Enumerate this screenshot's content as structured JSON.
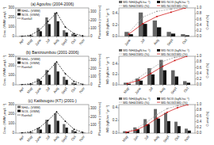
{
  "chart_data": [
    {
      "type": "bar",
      "title": "(a) Agoufou (2004-2006)",
      "y_label": "Conc. (VWM µeq.L⁻¹)",
      "y2_label": "Pluviométrie (mm/mois)",
      "categories": [
        "Apr",
        "May",
        "June",
        "Jul",
        "Aug",
        "Sept",
        "Oct",
        "Nov"
      ],
      "series": [
        {
          "name": "NH4+ (VWM)",
          "color": "#666666",
          "values": [
            5,
            10,
            90,
            200,
            250,
            65,
            28,
            4
          ]
        },
        {
          "name": "NO3- (VWM)",
          "color": "#111111",
          "values": [
            3,
            6,
            55,
            130,
            160,
            42,
            18,
            2
          ]
        },
        {
          "name": "Rainfall",
          "type": "line",
          "axis": "y2",
          "color": "#000000",
          "line_style": "dashed",
          "marker": "circle",
          "values": [
            2,
            15,
            75,
            185,
            290,
            115,
            35,
            8
          ]
        }
      ],
      "ylim": [
        0,
        300
      ],
      "yticks": [
        0,
        100,
        200,
        300
      ],
      "y2lim": [
        0,
        350
      ],
      "y2ticks": [
        0,
        100,
        200,
        300
      ],
      "grid": false,
      "legend": "upper left"
    },
    {
      "type": "bar",
      "y_label": "WD (kgN.ha⁻¹.yr⁻¹)",
      "y2_label": "Cumul (%)",
      "categories": [
        "June",
        "Jul",
        "Aug",
        "Sept",
        "Oct"
      ],
      "series": [
        {
          "name": "WD NH4(kgN.ha⁻¹)",
          "color": "#666666",
          "values": [
            0.08,
            0.42,
            0.28,
            0.08,
            0.04
          ]
        },
        {
          "name": "WD NO3 (kgN.ha⁻¹)",
          "color": "#111111",
          "values": [
            0.04,
            0.22,
            0.16,
            0.05,
            0.02
          ]
        },
        {
          "name": "WD NH4/ΣWD (%)",
          "type": "line",
          "axis": "y2",
          "color": "#999999",
          "line_style": "dashed",
          "marker": "circle",
          "values": [
            0.13,
            0.68,
            0.88,
            0.96,
            1.0
          ]
        },
        {
          "name": "WD NO3/ΣWD (%)",
          "type": "line",
          "axis": "y2",
          "color": "#cc0000",
          "line_style": "solid",
          "marker": "circle",
          "values": [
            0.08,
            0.45,
            0.7,
            0.85,
            1.0
          ]
        }
      ],
      "ylim": [
        0,
        0.5
      ],
      "yticks": [
        {
          "value": 0,
          "label": "0.0"
        },
        0.2,
        0.4
      ],
      "y2lim": [
        0,
        1.0
      ],
      "y2ticks": [
        {
          "value": 0,
          "label": "0.0"
        },
        0.2,
        0.4,
        0.6,
        0.8,
        {
          "value": 1,
          "label": "1.0"
        }
      ],
      "grid": false,
      "legend": "top"
    },
    {
      "type": "bar",
      "title": "(b) Banizoumbou (2001-2006)",
      "y_label": "Conc. (VWM µeq.L⁻¹)",
      "y2_label": "Pluviométrie (mm/mois)",
      "categories": [
        "Apr",
        "May",
        "June",
        "Jul",
        "Aug",
        "Sept",
        "Oct",
        "Nov"
      ],
      "series": [
        {
          "name": "NH4+ (VWM)",
          "color": "#666666",
          "values": [
            4,
            8,
            65,
            155,
            230,
            85,
            22,
            3
          ]
        },
        {
          "name": "NO3- (VWM)",
          "color": "#111111",
          "values": [
            2,
            5,
            42,
            105,
            140,
            52,
            14,
            2
          ]
        },
        {
          "name": "Rainfall",
          "type": "line",
          "axis": "y2",
          "color": "#000000",
          "line_style": "dashed",
          "marker": "circle",
          "values": [
            2,
            12,
            55,
            165,
            280,
            135,
            42,
            6
          ]
        }
      ],
      "ylim": [
        0,
        300
      ],
      "yticks": [
        0,
        100,
        200,
        300
      ],
      "y2lim": [
        0,
        350
      ],
      "y2ticks": [
        0,
        100,
        200,
        300
      ],
      "grid": false,
      "legend": "upper left"
    },
    {
      "type": "bar",
      "y_label": "WD (kgN.ha⁻¹.yr⁻¹)",
      "y2_label": "Cumul (%)",
      "categories": [
        "May",
        "June",
        "Jul",
        "Aug",
        "Sept",
        "Oct"
      ],
      "series": [
        {
          "name": "WD NH4(kgN.ha⁻¹)",
          "color": "#666666",
          "values": [
            0.04,
            0.12,
            0.32,
            0.48,
            0.28,
            0.07
          ]
        },
        {
          "name": "WD NO3 (kgN.ha⁻¹)",
          "color": "#111111",
          "values": [
            0.02,
            0.08,
            0.2,
            0.28,
            0.16,
            0.04
          ]
        },
        {
          "name": "WD NH4/ΣWD (%)",
          "type": "line",
          "axis": "y2",
          "color": "#999999",
          "line_style": "dashed",
          "marker": "circle",
          "values": [
            0.06,
            0.25,
            0.55,
            0.82,
            0.96,
            1.0
          ]
        },
        {
          "name": "WD NO3/ΣWD (%)",
          "type": "line",
          "axis": "y2",
          "color": "#cc0000",
          "line_style": "solid",
          "marker": "circle",
          "values": [
            0.04,
            0.16,
            0.4,
            0.65,
            0.85,
            1.0
          ]
        }
      ],
      "ylim": [
        0,
        0.55
      ],
      "yticks": [
        {
          "value": 0,
          "label": "0.0"
        },
        0.2,
        0.4
      ],
      "y2lim": [
        0,
        1.0
      ],
      "y2ticks": [
        {
          "value": 0,
          "label": "0.0"
        },
        0.2,
        0.4,
        0.6,
        0.8,
        {
          "value": 1,
          "label": "1.0"
        }
      ],
      "grid": false,
      "legend": "top"
    },
    {
      "type": "bar",
      "title": "(c) Katibougou (KT) (2001-)",
      "y_label": "Conc. (VWM µeq.L⁻¹)",
      "y2_label": "Pluviométrie (mm/mois)",
      "categories": [
        "Apr",
        "May",
        "June",
        "Jul",
        "Aug",
        "Sept",
        "Oct",
        "Nov"
      ],
      "series": [
        {
          "name": "NH4+ (VWM)",
          "color": "#666666",
          "values": [
            4,
            8,
            55,
            140,
            210,
            95,
            32,
            5
          ]
        },
        {
          "name": "NO3- (VWM)",
          "color": "#111111",
          "values": [
            2,
            5,
            38,
            90,
            130,
            58,
            18,
            3
          ]
        },
        {
          "name": "Rainfall",
          "type": "line",
          "axis": "y2",
          "color": "#000000",
          "line_style": "dashed",
          "marker": "circle",
          "values": [
            3,
            16,
            65,
            155,
            260,
            145,
            48,
            10
          ]
        }
      ],
      "ylim": [
        0,
        300
      ],
      "yticks": [
        0,
        100,
        200,
        300
      ],
      "y2lim": [
        0,
        350
      ],
      "y2ticks": [
        0,
        100,
        200,
        300
      ],
      "grid": false,
      "legend": "upper left"
    },
    {
      "type": "bar",
      "y_label": "WD (kgN.ha⁻¹.yr⁻¹)",
      "y2_label": "Cumul (%)",
      "categories": [
        "May",
        "Jun",
        "Jul",
        "Aug",
        "Sept",
        "Oct",
        "Nov"
      ],
      "series": [
        {
          "name": "WD NH4(kgN.ha⁻¹)",
          "color": "#666666",
          "values": [
            0.03,
            0.09,
            0.22,
            0.38,
            0.32,
            0.18,
            0.07
          ]
        },
        {
          "name": "WD NO3 (kgN.ha⁻¹)",
          "color": "#111111",
          "values": [
            0.02,
            0.06,
            0.14,
            0.23,
            0.19,
            0.11,
            0.04
          ]
        },
        {
          "name": "WD NH4/ΣWD (%)",
          "type": "line",
          "axis": "y2",
          "color": "#999999",
          "line_style": "dashed",
          "marker": "circle",
          "values": [
            0.04,
            0.16,
            0.38,
            0.65,
            0.86,
            0.96,
            1.0
          ]
        },
        {
          "name": "WD NO3/ΣWD (%)",
          "type": "line",
          "axis": "y2",
          "color": "#cc0000",
          "line_style": "solid",
          "marker": "circle",
          "values": [
            0.03,
            0.11,
            0.28,
            0.52,
            0.73,
            0.89,
            1.0
          ]
        }
      ],
      "ylim": [
        0,
        0.45
      ],
      "yticks": [
        {
          "value": 0,
          "label": "0.0"
        },
        0.2,
        0.4
      ],
      "y2lim": [
        0,
        1.0
      ],
      "y2ticks": [
        {
          "value": 0,
          "label": "0.0"
        },
        0.2,
        0.4,
        0.6,
        0.8,
        {
          "value": 1,
          "label": "1.0"
        }
      ],
      "grid": false,
      "legend": "top"
    }
  ]
}
